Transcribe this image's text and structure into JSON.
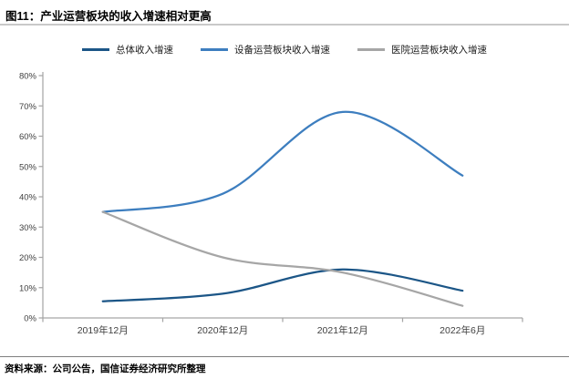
{
  "header": {
    "title": "图11：产业运营板块的收入增速相对更高"
  },
  "footer": {
    "source": "资料来源：公司公告，国信证券经济研究所整理"
  },
  "chart_data": {
    "type": "line",
    "smoothed": true,
    "title": "图11：产业运营板块的收入增速相对更高",
    "xlabel": "",
    "ylabel": "",
    "categories": [
      "2019年12月",
      "2020年12月",
      "2021年12月",
      "2022年6月"
    ],
    "series": [
      {
        "name": "总体收入增速",
        "color": "#1c5687",
        "values": [
          5.5,
          8,
          16,
          9
        ]
      },
      {
        "name": "设备运营板块收入增速",
        "color": "#3d7ebf",
        "values": [
          35,
          41,
          68,
          47
        ]
      },
      {
        "name": "医院运营板块收入增速",
        "color": "#a6a6a6",
        "values": [
          35,
          20,
          15,
          4
        ]
      }
    ],
    "ylim": [
      0,
      80
    ],
    "ytick_step": 10,
    "ytick_labels": [
      "0%",
      "10%",
      "20%",
      "30%",
      "40%",
      "50%",
      "60%",
      "70%",
      "80%"
    ],
    "grid": false,
    "legend_position": "top",
    "axis_color": "#a6a6a6",
    "tick_label_color": "#404040"
  }
}
